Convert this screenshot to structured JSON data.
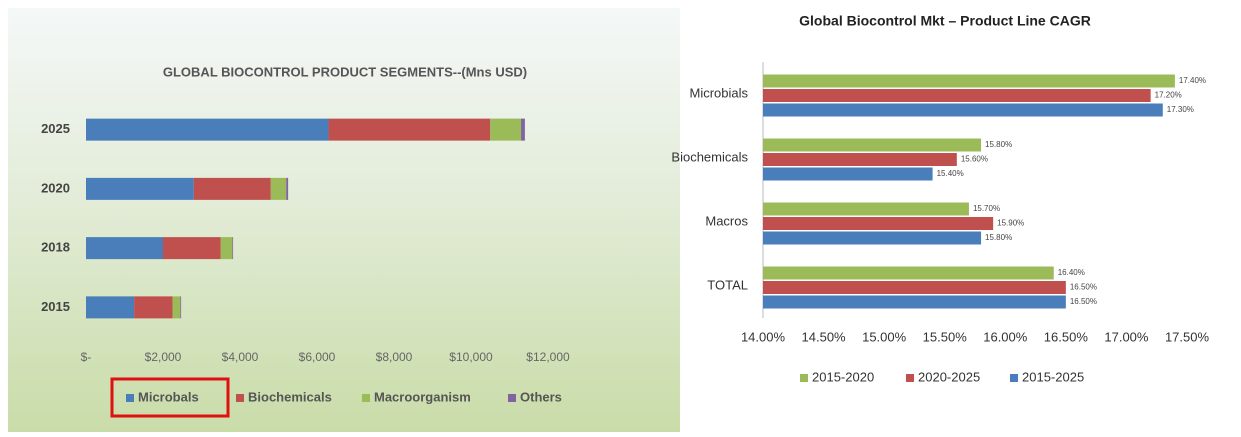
{
  "chart_data": [
    {
      "type": "bar",
      "stacked": true,
      "horizontal": true,
      "title": "GLOBAL BIOCONTROL PRODUCT SEGMENTS--(Mns USD)",
      "categories": [
        "2025",
        "2020",
        "2018",
        "2015"
      ],
      "series": [
        {
          "name": "Microbals",
          "color": "#4a7ebb",
          "values": [
            6300,
            2800,
            2000,
            1250
          ]
        },
        {
          "name": "Biochemicals",
          "color": "#c0504d",
          "values": [
            4200,
            2000,
            1500,
            1000
          ]
        },
        {
          "name": "Macroorganism",
          "color": "#9bbb59",
          "values": [
            800,
            400,
            300,
            200
          ]
        },
        {
          "name": "Others",
          "color": "#8064a2",
          "values": [
            100,
            50,
            20,
            20
          ]
        }
      ],
      "xlim": [
        0,
        12000
      ],
      "xticks": [
        {
          "value": 0,
          "label": "$-"
        },
        {
          "value": 2000,
          "label": "$2,000"
        },
        {
          "value": 4000,
          "label": "$4,000"
        },
        {
          "value": 6000,
          "label": "$6,000"
        },
        {
          "value": 8000,
          "label": "$8,000"
        },
        {
          "value": 10000,
          "label": "$10,000"
        },
        {
          "value": 12000,
          "label": "$12,000"
        }
      ],
      "grid": false,
      "legend": "bottom"
    },
    {
      "type": "bar",
      "stacked": false,
      "horizontal": true,
      "title": "Global Biocontrol Mkt – Product Line CAGR",
      "categories": [
        "Microbials",
        "Biochemicals",
        "Macros",
        "TOTAL"
      ],
      "series": [
        {
          "name": "2015-2020",
          "color": "#9bbb59",
          "values": [
            17.4,
            15.8,
            15.7,
            16.4
          ],
          "value_labels": [
            "17.40%",
            "15.80%",
            "15.70%",
            "16.40%"
          ]
        },
        {
          "name": "2020-2025",
          "color": "#c0504d",
          "values": [
            17.2,
            15.6,
            15.9,
            16.5
          ],
          "value_labels": [
            "17.20%",
            "15.60%",
            "15.90%",
            "16.50%"
          ]
        },
        {
          "name": "2015-2025",
          "color": "#4a7ebb",
          "values": [
            17.3,
            15.4,
            15.8,
            16.5
          ],
          "value_labels": [
            "17.30%",
            "15.40%",
            "15.80%",
            "16.50%"
          ]
        }
      ],
      "xlim": [
        14,
        17.5
      ],
      "xticks": [
        {
          "value": 14,
          "label": "14.00%"
        },
        {
          "value": 14.5,
          "label": "14.50%"
        },
        {
          "value": 15,
          "label": "15.00%"
        },
        {
          "value": 15.5,
          "label": "15.50%"
        },
        {
          "value": 16,
          "label": "16.00%"
        },
        {
          "value": 16.5,
          "label": "16.50%"
        },
        {
          "value": 17,
          "label": "17.00%"
        },
        {
          "value": 17.5,
          "label": "17.50%"
        }
      ],
      "grid": false,
      "legend": "bottom"
    }
  ]
}
